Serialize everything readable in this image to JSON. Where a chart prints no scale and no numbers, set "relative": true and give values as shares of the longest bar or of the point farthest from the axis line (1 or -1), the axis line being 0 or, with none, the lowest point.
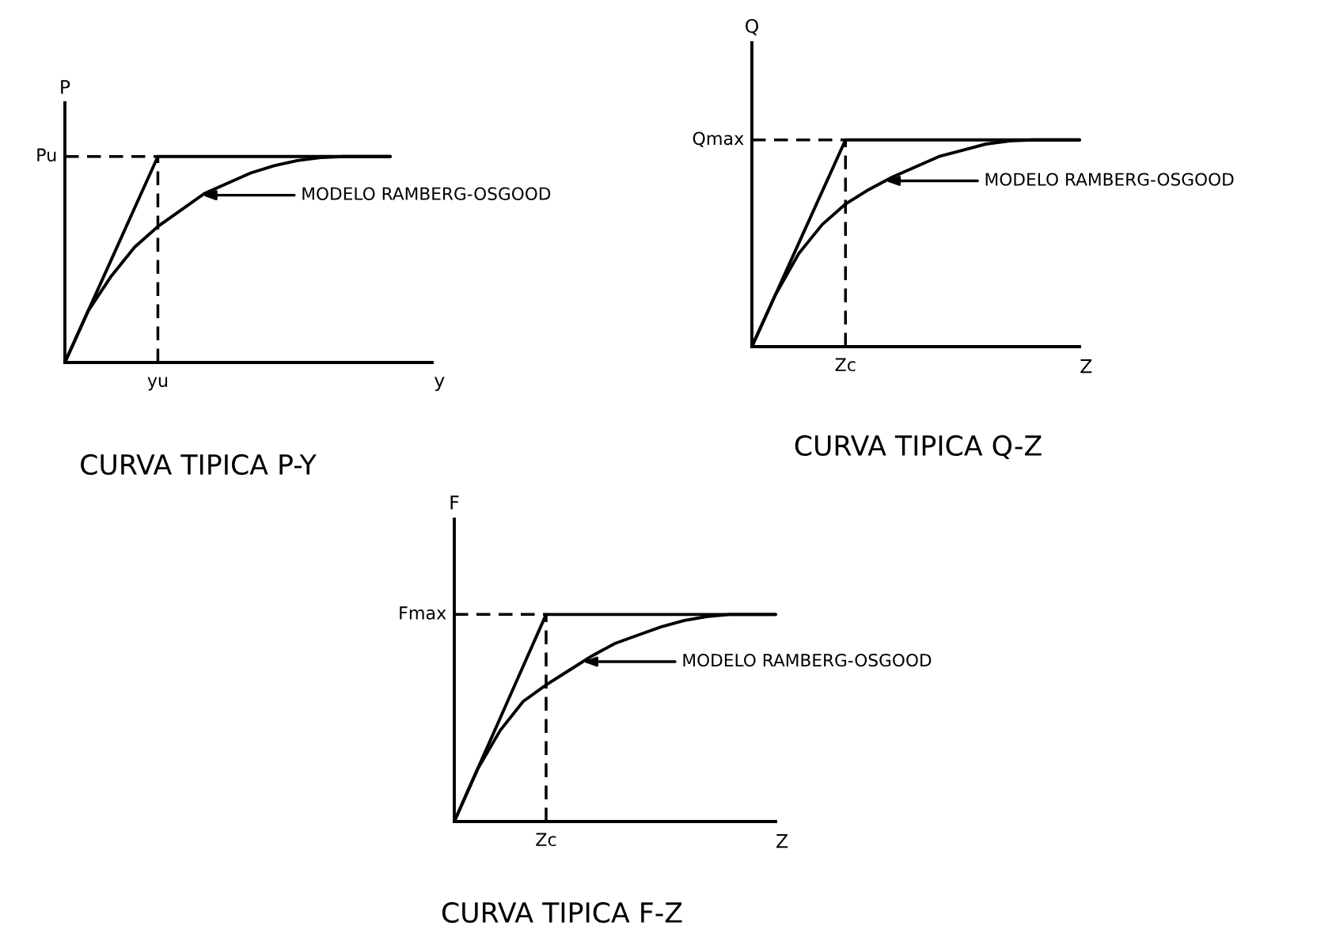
{
  "chart_data": [
    {
      "type": "line",
      "title": "CURVA TIPICA P-Y",
      "xlabel": "y",
      "ylabel": "P",
      "relative": true,
      "categories": [
        null,
        null,
        null,
        null,
        null,
        null,
        null,
        null,
        null,
        null,
        null,
        null,
        null,
        null,
        null
      ],
      "series": [
        {
          "color": "#000000",
          "values": [
            0,
            0.25,
            0.5,
            0.75,
            1,
            1,
            1,
            1,
            1,
            1,
            1,
            1,
            1,
            1,
            1
          ]
        },
        {
          "color": "#000000",
          "values": [
            0,
            0.25,
            0.42,
            0.56,
            0.66,
            0.74,
            0.82,
            0.87,
            0.92,
            0.955,
            0.98,
            0.995,
            1,
            1,
            1
          ]
        }
      ],
      "ref_lines": [
        {
          "axis": "y",
          "value": 1,
          "label": "Pu",
          "line_style": "dashed"
        }
      ],
      "annotations": [
        "MODELO RAMBERG-OSGOOD",
        "yu"
      ]
    },
    {
      "type": "line",
      "title": "CURVA TIPICA Q-Z",
      "xlabel": "Z",
      "ylabel": "Q",
      "relative": true,
      "categories": [
        null,
        null,
        null,
        null,
        null,
        null,
        null,
        null,
        null,
        null,
        null,
        null,
        null,
        null,
        null
      ],
      "series": [
        {
          "color": "#000000",
          "values": [
            0,
            0.25,
            0.5,
            0.75,
            1,
            1,
            1,
            1,
            1,
            1,
            1,
            1,
            1,
            1,
            1
          ]
        },
        {
          "color": "#000000",
          "values": [
            0,
            0.25,
            0.45,
            0.59,
            0.69,
            0.76,
            0.82,
            0.87,
            0.92,
            0.95,
            0.98,
            0.995,
            1,
            1,
            1
          ]
        }
      ],
      "ref_lines": [
        {
          "axis": "y",
          "value": 1,
          "label": "Qmax",
          "line_style": "dashed"
        }
      ],
      "annotations": [
        "MODELO RAMBERG-OSGOOD",
        "Zc"
      ]
    },
    {
      "type": "line",
      "title": "CURVA TIPICA F-Z",
      "xlabel": "Z",
      "ylabel": "F",
      "relative": true,
      "categories": [
        null,
        null,
        null,
        null,
        null,
        null,
        null,
        null,
        null,
        null,
        null,
        null,
        null,
        null,
        null
      ],
      "series": [
        {
          "color": "#000000",
          "values": [
            0,
            0.25,
            0.5,
            0.75,
            1,
            1,
            1,
            1,
            1,
            1,
            1,
            1,
            1,
            1,
            1
          ]
        },
        {
          "color": "#000000",
          "values": [
            0,
            0.25,
            0.44,
            0.58,
            0.66,
            0.73,
            0.8,
            0.86,
            0.9,
            0.94,
            0.97,
            0.99,
            1,
            1,
            1
          ]
        }
      ],
      "ref_lines": [
        {
          "axis": "y",
          "value": 1,
          "label": "Fmax",
          "line_style": "dashed"
        }
      ],
      "annotations": [
        "MODELO RAMBERG-OSGOOD",
        "Zc"
      ]
    }
  ]
}
